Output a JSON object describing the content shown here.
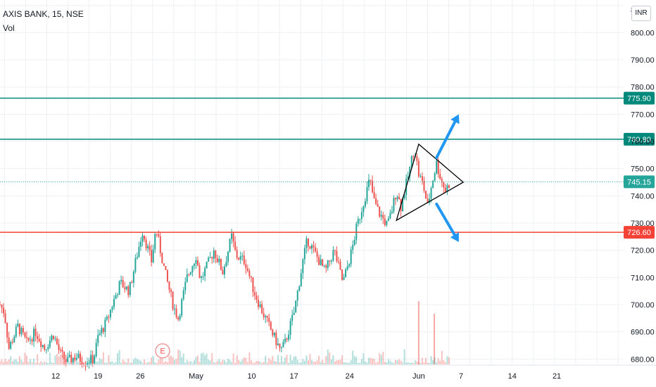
{
  "header": {
    "symbol_line": "AXIS BANK, 15, NSE",
    "indicator": "Vol",
    "currency_button": "INR"
  },
  "colors": {
    "up": "#26a69a",
    "down": "#ef5350",
    "support_resistance_line": "#00897b",
    "lower_line": "#f44336",
    "arrow": "#2196f3",
    "triangle": "#000000",
    "grid": "#eef0f3"
  },
  "chart_data": {
    "type": "candlestick",
    "title": "AXIS BANK, 15, NSE",
    "ylim": [
      678,
      812
    ],
    "grid": true,
    "y_ticks": [
      680,
      690,
      700,
      710,
      720,
      730,
      740,
      750,
      760,
      770,
      780,
      790,
      800
    ],
    "y_tick_labels": [
      "680.00",
      "690.00",
      "700.00",
      "710.00",
      "720.00",
      "730.00",
      "740.00",
      "750.00",
      "760.00",
      "770.00",
      "780.00",
      "790.00",
      "800.00"
    ],
    "top_partial_tick_label": "8",
    "x_ticks": [
      "12",
      "19",
      "26",
      "May",
      "10",
      "17",
      "24",
      "Jun",
      "7",
      "14",
      "21"
    ],
    "horizontal_lines": [
      {
        "label": "775.90",
        "value": 775.9,
        "color": "#00897b"
      },
      {
        "label": "760.80",
        "value": 760.8,
        "color": "#00897b"
      },
      {
        "label": "726.60",
        "value": 726.6,
        "color": "#f44336"
      }
    ],
    "last_price": {
      "label": "745.15",
      "value": 745.15,
      "color": "#26a69a"
    },
    "price_path": [
      {
        "x": 0,
        "y": 700
      },
      {
        "x": 2,
        "y": 697
      },
      {
        "x": 4,
        "y": 684
      },
      {
        "x": 8,
        "y": 692
      },
      {
        "x": 12,
        "y": 686
      },
      {
        "x": 16,
        "y": 690
      },
      {
        "x": 20,
        "y": 684
      },
      {
        "x": 24,
        "y": 689
      },
      {
        "x": 27,
        "y": 682
      },
      {
        "x": 30,
        "y": 679
      },
      {
        "x": 34,
        "y": 681
      },
      {
        "x": 38,
        "y": 679
      },
      {
        "x": 42,
        "y": 680
      },
      {
        "x": 44,
        "y": 688
      },
      {
        "x": 48,
        "y": 694
      },
      {
        "x": 50,
        "y": 699
      },
      {
        "x": 54,
        "y": 708
      },
      {
        "x": 58,
        "y": 705
      },
      {
        "x": 62,
        "y": 720
      },
      {
        "x": 64,
        "y": 727
      },
      {
        "x": 68,
        "y": 716
      },
      {
        "x": 70,
        "y": 728
      },
      {
        "x": 72,
        "y": 720
      },
      {
        "x": 74,
        "y": 712
      },
      {
        "x": 78,
        "y": 699
      },
      {
        "x": 80,
        "y": 695
      },
      {
        "x": 84,
        "y": 710
      },
      {
        "x": 88,
        "y": 718
      },
      {
        "x": 90,
        "y": 709
      },
      {
        "x": 94,
        "y": 716
      },
      {
        "x": 96,
        "y": 720
      },
      {
        "x": 100,
        "y": 712
      },
      {
        "x": 104,
        "y": 725
      },
      {
        "x": 106,
        "y": 718
      },
      {
        "x": 110,
        "y": 716
      },
      {
        "x": 114,
        "y": 705
      },
      {
        "x": 118,
        "y": 697
      },
      {
        "x": 122,
        "y": 690
      },
      {
        "x": 126,
        "y": 683
      },
      {
        "x": 128,
        "y": 686
      },
      {
        "x": 132,
        "y": 697
      },
      {
        "x": 136,
        "y": 716
      },
      {
        "x": 138,
        "y": 724
      },
      {
        "x": 142,
        "y": 718
      },
      {
        "x": 146,
        "y": 712
      },
      {
        "x": 150,
        "y": 720
      },
      {
        "x": 152,
        "y": 714
      },
      {
        "x": 154,
        "y": 708
      },
      {
        "x": 158,
        "y": 720
      },
      {
        "x": 160,
        "y": 728
      },
      {
        "x": 164,
        "y": 740
      },
      {
        "x": 166,
        "y": 746
      },
      {
        "x": 168,
        "y": 738
      },
      {
        "x": 170,
        "y": 734
      },
      {
        "x": 174,
        "y": 729
      },
      {
        "x": 176,
        "y": 735
      },
      {
        "x": 178,
        "y": 742
      },
      {
        "x": 180,
        "y": 736
      },
      {
        "x": 184,
        "y": 750
      },
      {
        "x": 186,
        "y": 758
      },
      {
        "x": 188,
        "y": 748
      },
      {
        "x": 190,
        "y": 744
      },
      {
        "x": 192,
        "y": 736
      },
      {
        "x": 194,
        "y": 745
      },
      {
        "x": 196,
        "y": 752
      },
      {
        "x": 198,
        "y": 746
      },
      {
        "x": 200,
        "y": 742
      },
      {
        "x": 202,
        "y": 745
      }
    ],
    "x_range": [
      0,
      280
    ],
    "x_tick_positions": [
      25,
      44,
      63,
      88,
      113,
      132,
      157,
      188,
      207,
      230,
      250
    ],
    "annotations": {
      "triangle": [
        {
          "x": 188,
          "y": 759
        },
        {
          "x": 208,
          "y": 745
        },
        {
          "x": 178,
          "y": 731
        }
      ],
      "arrows": [
        {
          "from": {
            "x": 196,
            "y": 754
          },
          "to": {
            "x": 206,
            "y": 770
          }
        },
        {
          "from": {
            "x": 196,
            "y": 737
          },
          "to": {
            "x": 206,
            "y": 723
          }
        }
      ],
      "event_marker": {
        "label": "E",
        "x": 73,
        "y": 683
      }
    },
    "volume_spikes": [
      {
        "x": 188,
        "value": 1.0
      },
      {
        "x": 195,
        "value": 0.8
      }
    ]
  }
}
